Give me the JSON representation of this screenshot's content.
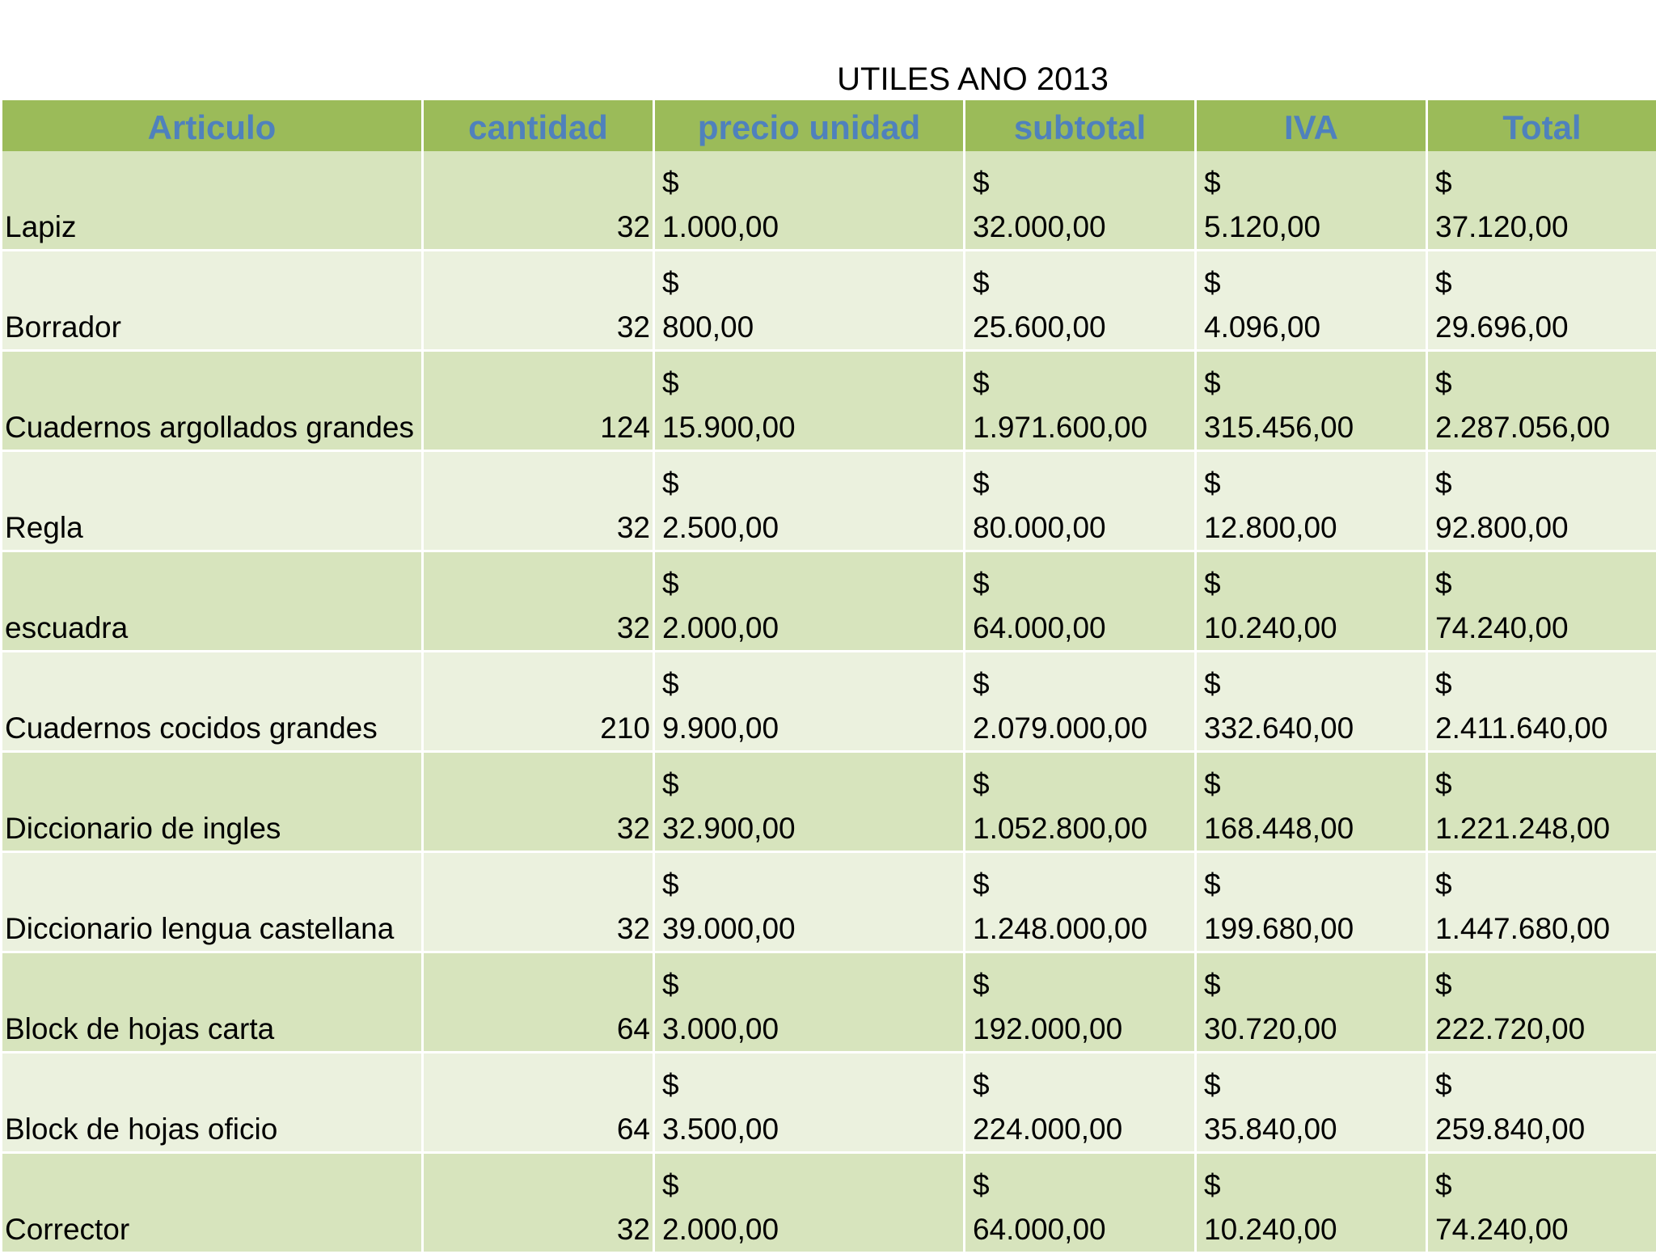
{
  "title": "UTILES ANO 2013",
  "table": {
    "header": [
      "Articulo",
      "cantidad",
      "precio unidad",
      "subtotal",
      "IVA",
      "Total"
    ],
    "rows": [
      [
        "Lapiz",
        32,
        "$\n1.000,00",
        "$\n32.000,00",
        "$\n5.120,00",
        "$\n37.120,00"
      ],
      [
        "Borrador",
        32,
        "$\n800,00",
        "$\n25.600,00",
        "$\n4.096,00",
        "$\n29.696,00"
      ],
      [
        "Cuadernos argollados grandes",
        124,
        "$\n15.900,00",
        "$\n1.971.600,00",
        "$\n315.456,00",
        "$\n2.287.056,00"
      ],
      [
        "Regla",
        32,
        "$\n2.500,00",
        "$\n80.000,00",
        "$\n12.800,00",
        "$\n92.800,00"
      ],
      [
        "escuadra",
        32,
        "$\n2.000,00",
        "$\n64.000,00",
        "$\n10.240,00",
        "$\n74.240,00"
      ],
      [
        "Cuadernos cocidos grandes",
        210,
        "$\n9.900,00",
        "$\n2.079.000,00",
        "$\n332.640,00",
        "$\n2.411.640,00"
      ],
      [
        "Diccionario de ingles",
        32,
        "$\n32.900,00",
        "$\n1.052.800,00",
        "$\n168.448,00",
        "$\n1.221.248,00"
      ],
      [
        "Diccionario lengua castellana",
        32,
        "$\n39.000,00",
        "$\n1.248.000,00",
        "$\n199.680,00",
        "$\n1.447.680,00"
      ],
      [
        "Block de hojas carta",
        64,
        "$\n3.000,00",
        "$\n192.000,00",
        "$\n30.720,00",
        "$\n222.720,00"
      ],
      [
        "Block de hojas oficio",
        64,
        "$\n3.500,00",
        "$\n224.000,00",
        "$\n35.840,00",
        "$\n259.840,00"
      ],
      [
        "Corrector",
        32,
        "$\n2.000,00",
        "$\n64.000,00",
        "$\n10.240,00",
        "$\n74.240,00"
      ]
    ]
  }
}
